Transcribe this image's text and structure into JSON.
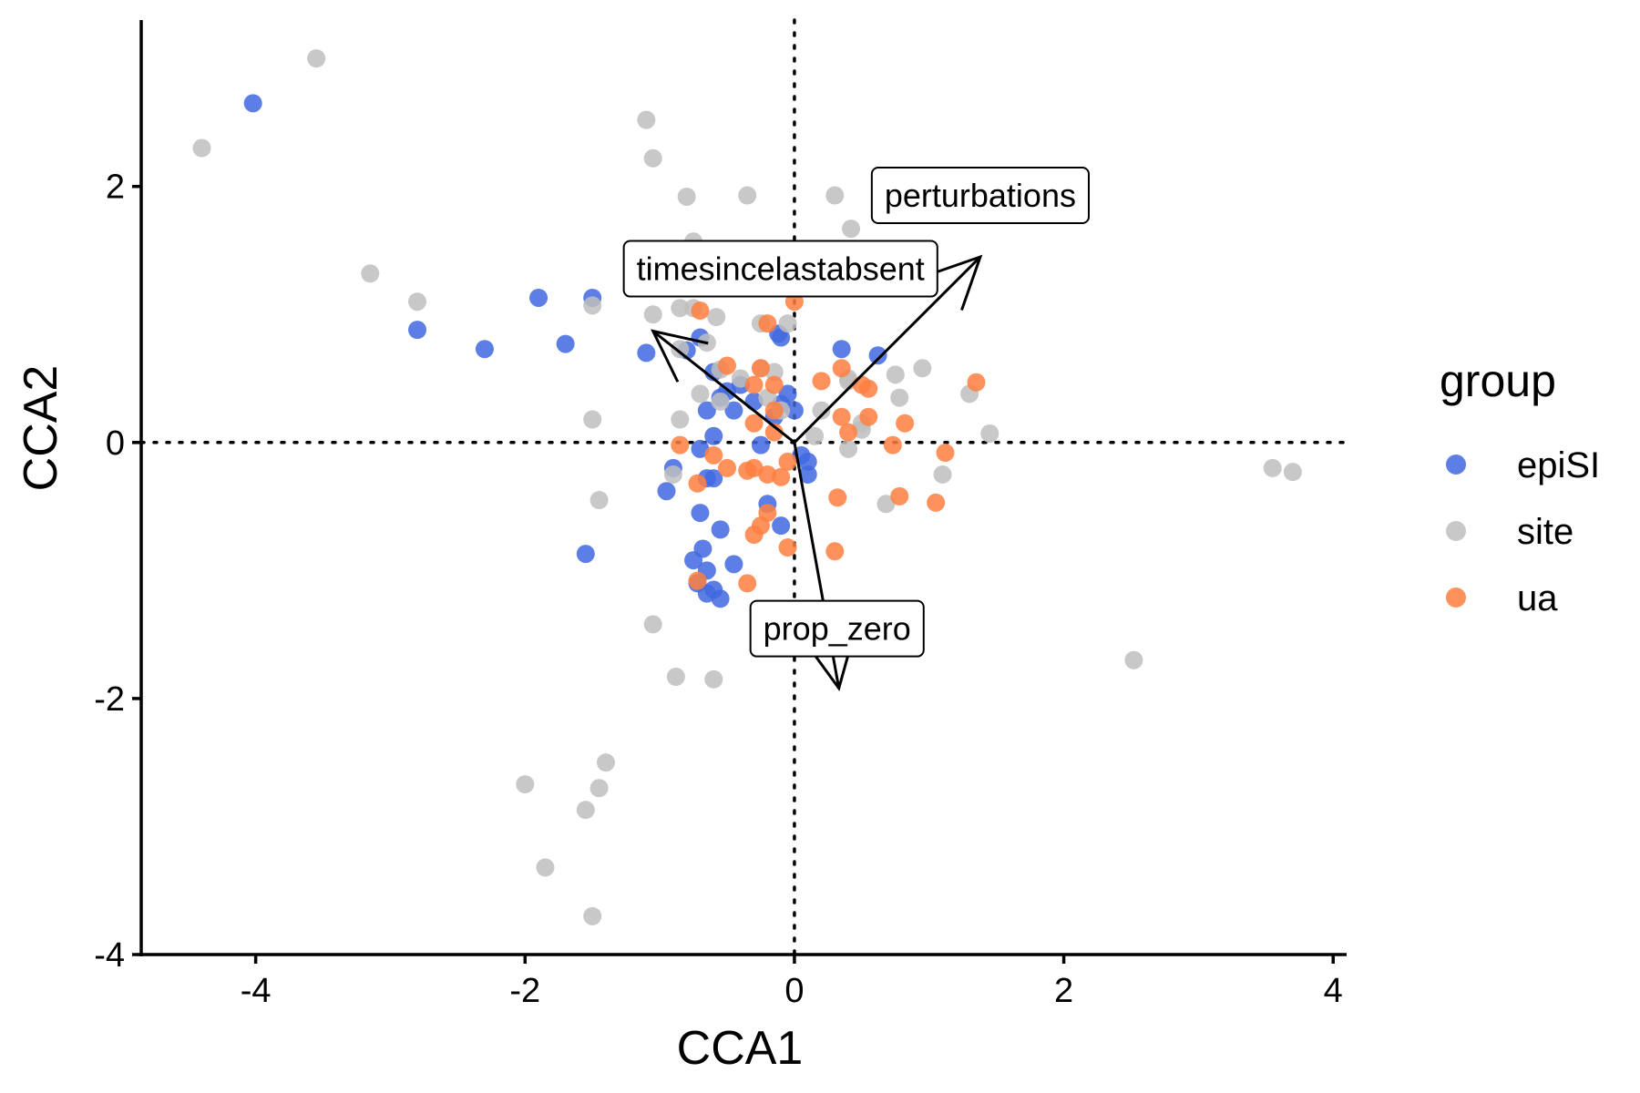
{
  "chart_data": {
    "type": "scatter",
    "xlabel": "CCA1",
    "ylabel": "CCA2",
    "xlim": [
      -4.85,
      4.1
    ],
    "ylim": [
      -4.0,
      3.3
    ],
    "xticks": [
      -4,
      -2,
      0,
      2,
      4
    ],
    "yticks": [
      -4,
      -2,
      0,
      2
    ],
    "xtick_labels": [
      "-4",
      "-2",
      "0",
      "2",
      "4"
    ],
    "ytick_labels": [
      "-4",
      "-2",
      "0",
      "2"
    ],
    "grid": false,
    "reference_lines": {
      "x": 0,
      "y": 0,
      "style": "dotted"
    },
    "legend": {
      "title": "group",
      "placement": "right"
    },
    "series": [
      {
        "name": "epiSI",
        "color": "#4169E1",
        "points": [
          [
            -4.02,
            2.65
          ],
          [
            -2.8,
            0.88
          ],
          [
            -2.3,
            0.73
          ],
          [
            -1.7,
            0.77
          ],
          [
            -1.9,
            1.13
          ],
          [
            -1.5,
            1.13
          ],
          [
            -1.1,
            0.7
          ],
          [
            -0.8,
            0.72
          ],
          [
            -0.7,
            0.82
          ],
          [
            -0.6,
            0.55
          ],
          [
            -0.5,
            0.4
          ],
          [
            -0.55,
            0.35
          ],
          [
            -0.45,
            0.25
          ],
          [
            -0.65,
            0.25
          ],
          [
            -0.6,
            0.05
          ],
          [
            -0.7,
            -0.05
          ],
          [
            -0.9,
            -0.2
          ],
          [
            -0.95,
            -0.38
          ],
          [
            -0.65,
            -0.28
          ],
          [
            -0.6,
            -0.28
          ],
          [
            -0.7,
            -0.55
          ],
          [
            -0.55,
            -0.68
          ],
          [
            -0.68,
            -0.83
          ],
          [
            -0.75,
            -0.92
          ],
          [
            -0.65,
            -1.0
          ],
          [
            -0.45,
            -0.95
          ],
          [
            -0.72,
            -1.1
          ],
          [
            -0.6,
            -1.15
          ],
          [
            -0.55,
            -1.22
          ],
          [
            -0.65,
            -1.18
          ],
          [
            -0.1,
            -0.65
          ],
          [
            -0.2,
            -0.48
          ],
          [
            -0.25,
            -0.02
          ],
          [
            -0.05,
            0.38
          ],
          [
            -0.1,
            0.3
          ],
          [
            -0.15,
            0.2
          ],
          [
            -0.1,
            0.82
          ],
          [
            -0.12,
            0.85
          ],
          [
            0.05,
            -0.1
          ],
          [
            0.1,
            -0.15
          ],
          [
            0.1,
            -0.25
          ],
          [
            0.35,
            0.73
          ],
          [
            0.62,
            0.68
          ],
          [
            -1.55,
            -0.87
          ],
          [
            -0.35,
            1.22
          ],
          [
            -0.4,
            0.45
          ],
          [
            -0.3,
            0.32
          ],
          [
            0.0,
            0.25
          ]
        ]
      },
      {
        "name": "site",
        "color": "#BEBEBE",
        "points": [
          [
            -4.4,
            2.3
          ],
          [
            -3.55,
            3.0
          ],
          [
            -3.15,
            1.32
          ],
          [
            -2.8,
            1.1
          ],
          [
            -1.5,
            1.07
          ],
          [
            -1.1,
            2.52
          ],
          [
            -1.05,
            2.22
          ],
          [
            -0.8,
            1.92
          ],
          [
            -0.35,
            1.93
          ],
          [
            0.3,
            1.93
          ],
          [
            0.42,
            1.67
          ],
          [
            -0.75,
            1.57
          ],
          [
            -1.05,
            1.0
          ],
          [
            -0.85,
            1.05
          ],
          [
            -0.75,
            1.05
          ],
          [
            -0.58,
            0.98
          ],
          [
            -0.25,
            0.93
          ],
          [
            -0.05,
            0.93
          ],
          [
            -0.65,
            0.78
          ],
          [
            -0.85,
            0.73
          ],
          [
            -0.25,
            0.58
          ],
          [
            -0.4,
            0.5
          ],
          [
            -0.55,
            0.57
          ],
          [
            -0.7,
            0.38
          ],
          [
            -0.85,
            0.18
          ],
          [
            -0.2,
            0.35
          ],
          [
            -0.1,
            0.25
          ],
          [
            -0.15,
            0.55
          ],
          [
            0.15,
            0.05
          ],
          [
            0.2,
            0.25
          ],
          [
            0.4,
            0.48
          ],
          [
            0.4,
            0.5
          ],
          [
            0.5,
            0.15
          ],
          [
            0.5,
            0.1
          ],
          [
            0.75,
            0.53
          ],
          [
            0.78,
            0.35
          ],
          [
            0.95,
            0.58
          ],
          [
            1.3,
            0.38
          ],
          [
            1.45,
            0.07
          ],
          [
            0.4,
            -0.05
          ],
          [
            1.1,
            -0.25
          ],
          [
            0.68,
            -0.48
          ],
          [
            -1.5,
            0.18
          ],
          [
            -1.45,
            -0.45
          ],
          [
            -1.05,
            -1.42
          ],
          [
            -0.88,
            -1.83
          ],
          [
            -0.6,
            -1.85
          ],
          [
            -2.0,
            -2.67
          ],
          [
            -1.4,
            -2.5
          ],
          [
            -1.45,
            -2.7
          ],
          [
            -1.55,
            -2.87
          ],
          [
            -1.85,
            -3.32
          ],
          [
            -1.5,
            -3.7
          ],
          [
            2.52,
            -1.7
          ],
          [
            3.55,
            -0.2
          ],
          [
            3.7,
            -0.23
          ],
          [
            -0.9,
            -0.25
          ],
          [
            -0.55,
            0.32
          ]
        ]
      },
      {
        "name": "ua",
        "color": "#FF7F3F",
        "points": [
          [
            -0.7,
            1.03
          ],
          [
            -0.2,
            0.93
          ],
          [
            0.0,
            1.1
          ],
          [
            -0.5,
            0.6
          ],
          [
            -0.3,
            0.45
          ],
          [
            -0.25,
            0.58
          ],
          [
            -0.15,
            0.45
          ],
          [
            0.2,
            0.48
          ],
          [
            0.35,
            0.58
          ],
          [
            0.5,
            0.45
          ],
          [
            0.55,
            0.42
          ],
          [
            1.35,
            0.47
          ],
          [
            0.35,
            0.2
          ],
          [
            0.55,
            0.2
          ],
          [
            0.82,
            0.15
          ],
          [
            0.4,
            0.08
          ],
          [
            -0.3,
            0.15
          ],
          [
            -0.15,
            0.08
          ],
          [
            -0.85,
            -0.02
          ],
          [
            -0.6,
            -0.1
          ],
          [
            -0.3,
            -0.2
          ],
          [
            -0.35,
            -0.22
          ],
          [
            -0.2,
            -0.25
          ],
          [
            -0.05,
            -0.15
          ],
          [
            0.73,
            -0.02
          ],
          [
            1.12,
            -0.08
          ],
          [
            0.32,
            -0.43
          ],
          [
            0.78,
            -0.42
          ],
          [
            1.05,
            -0.47
          ],
          [
            -0.2,
            -0.55
          ],
          [
            -0.25,
            -0.65
          ],
          [
            -0.3,
            -0.72
          ],
          [
            -0.05,
            -0.82
          ],
          [
            0.3,
            -0.85
          ],
          [
            -0.35,
            -1.1
          ],
          [
            -0.72,
            -1.08
          ],
          [
            -0.72,
            -0.32
          ],
          [
            -0.5,
            -0.2
          ],
          [
            -0.1,
            -0.27
          ],
          [
            -0.15,
            0.25
          ]
        ]
      }
    ],
    "vectors": [
      {
        "name": "perturbations",
        "x": 1.38,
        "y": 1.45
      },
      {
        "name": "timesincelastabsent",
        "x": -1.05,
        "y": 0.87
      },
      {
        "name": "prop_zero",
        "x": 0.33,
        "y": -1.92
      }
    ]
  }
}
